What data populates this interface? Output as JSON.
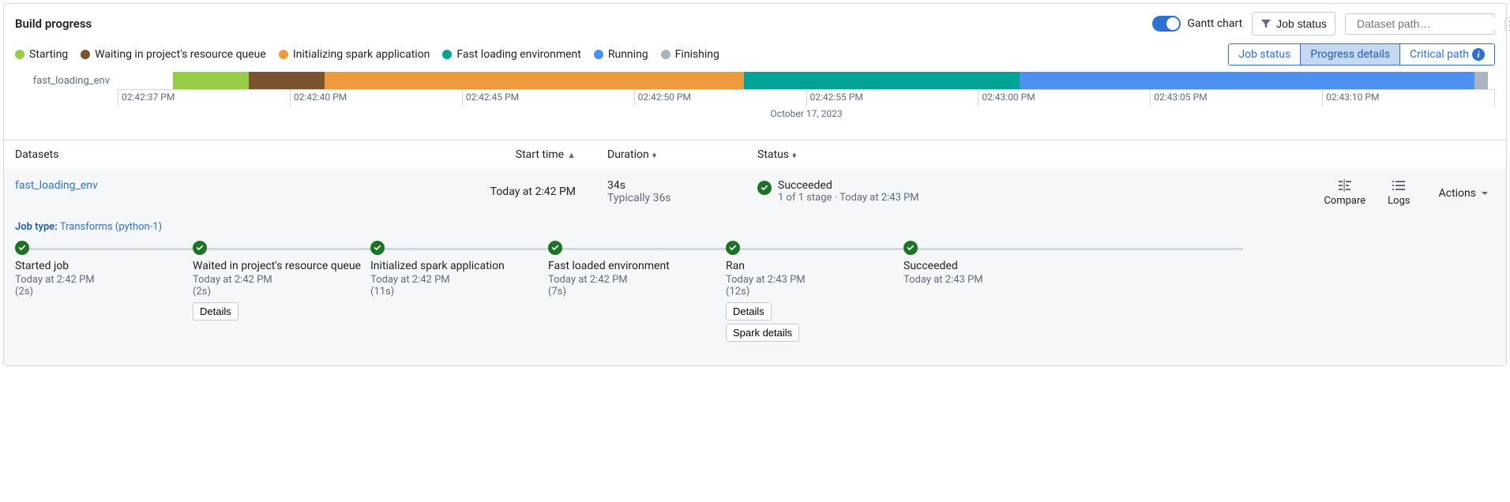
{
  "colors": {
    "accent": "#2d72d2",
    "success": "#1d7324",
    "border": "#d3d8de"
  },
  "header": {
    "title": "Build progress",
    "gantt_toggle_label": "Gantt chart",
    "gantt_toggle_on": true,
    "job_status_btn": "Job status",
    "search_placeholder": "Dataset path…",
    "search_kbd": "⌘K"
  },
  "legend": [
    {
      "label": "Starting",
      "color": "#97cc47"
    },
    {
      "label": "Waiting in project's resource queue",
      "color": "#7a542e"
    },
    {
      "label": "Initializing spark application",
      "color": "#ec9a3c"
    },
    {
      "label": "Fast loading environment",
      "color": "#00a396"
    },
    {
      "label": "Running",
      "color": "#4c90f0"
    },
    {
      "label": "Finishing",
      "color": "#abb3bf"
    }
  ],
  "tabs": {
    "items": [
      "Job status",
      "Progress details",
      "Critical path"
    ],
    "active_index": 1,
    "info_icon_bg": "#2d72d2"
  },
  "gantt": {
    "row_label": "fast_loading_env",
    "date_label": "October 17, 2023",
    "ticks": [
      "02:42:37 PM",
      "02:42:40 PM",
      "02:42:45 PM",
      "02:42:50 PM",
      "02:42:55 PM",
      "02:43:00 PM",
      "02:43:05 PM",
      "02:43:10 PM"
    ],
    "segments": [
      {
        "width_pct": 4.0,
        "color": "transparent"
      },
      {
        "width_pct": 5.5,
        "color": "#97cc47"
      },
      {
        "width_pct": 5.5,
        "color": "#7a542e"
      },
      {
        "width_pct": 30.5,
        "color": "#ec9a3c"
      },
      {
        "width_pct": 20.0,
        "color": "#00a396"
      },
      {
        "width_pct": 33.0,
        "color": "#4c90f0"
      },
      {
        "width_pct": 1.0,
        "color": "#abb3bf"
      }
    ]
  },
  "table": {
    "columns": {
      "datasets": "Datasets",
      "start": "Start time",
      "duration": "Duration",
      "status": "Status"
    },
    "sort_col": "start",
    "sort_dir": "asc"
  },
  "row": {
    "dataset_name": "fast_loading_env",
    "start_time": "Today at 2:42 PM",
    "duration": "34s",
    "duration_typical": "Typically 36s",
    "status_label": "Succeeded",
    "status_sub": "1 of 1 stage · Today at 2:43 PM",
    "status_color": "#1d7324",
    "actions": {
      "compare": "Compare",
      "logs": "Logs",
      "actions": "Actions"
    }
  },
  "job_type": {
    "label": "Job type:",
    "value": "Transforms (python-1)"
  },
  "stages": [
    {
      "title": "Started job",
      "time": "Today at 2:42 PM",
      "dur": "(2s)",
      "buttons": []
    },
    {
      "title": "Waited in project's resource queue",
      "time": "Today at 2:42 PM",
      "dur": "(2s)",
      "buttons": [
        "Details"
      ]
    },
    {
      "title": "Initialized spark application",
      "time": "Today at 2:42 PM",
      "dur": "(11s)",
      "buttons": []
    },
    {
      "title": "Fast loaded environment",
      "time": "Today at 2:42 PM",
      "dur": "(7s)",
      "buttons": []
    },
    {
      "title": "Ran",
      "time": "Today at 2:43 PM",
      "dur": "(12s)",
      "buttons": [
        "Details",
        "Spark details"
      ]
    },
    {
      "title": "Succeeded",
      "time": "Today at 2:43 PM",
      "dur": "",
      "buttons": []
    }
  ],
  "stage_dot_color": "#1d7324",
  "stage_line_width_pct": 83
}
